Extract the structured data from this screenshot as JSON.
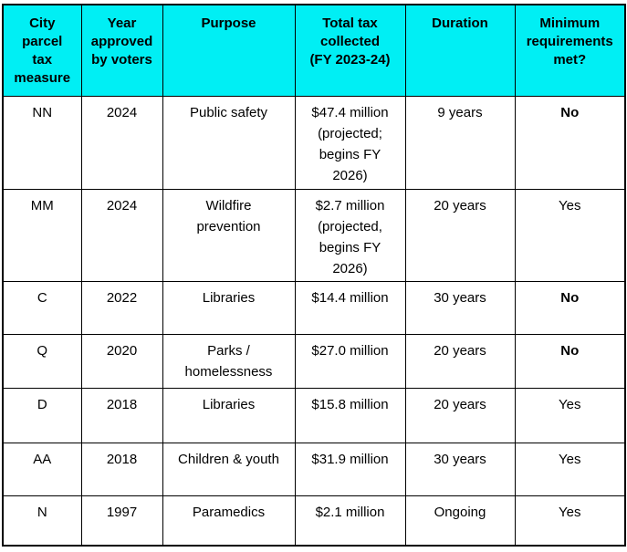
{
  "styles": {
    "header_bg": "#00EFF4",
    "border_color": "#000000",
    "text_color": "#000000"
  },
  "chart_data": {
    "type": "table",
    "title": "",
    "columns": [
      "City parcel tax measure",
      "Year approved by voters",
      "Purpose",
      "Total tax collected (FY 2023-24)",
      "Duration",
      "Minimum requirements met?"
    ],
    "rows": [
      [
        "NN",
        "2024",
        "Public safety",
        "$47.4 million (projected; begins FY 2026)",
        "9 years",
        "No"
      ],
      [
        "MM",
        "2024",
        "Wildfire prevention",
        "$2.7 million (projected, begins FY 2026)",
        "20 years",
        "Yes"
      ],
      [
        "C",
        "2022",
        "Libraries",
        "$14.4 million",
        "30 years",
        "No"
      ],
      [
        "Q",
        "2020",
        "Parks / homelessness",
        "$27.0 million",
        "20 years",
        "No"
      ],
      [
        "D",
        "2018",
        "Libraries",
        "$15.8 million",
        "20 years",
        "Yes"
      ],
      [
        "AA",
        "2018",
        "Children & youth",
        "$31.9 million",
        "30 years",
        "Yes"
      ],
      [
        "N",
        "1997",
        "Paramedics",
        "$2.1 million",
        "Ongoing",
        "Yes"
      ]
    ]
  },
  "display": {
    "header": [
      "City\nparcel\ntax\nmeasure",
      "Year\napproved\nby voters",
      "Purpose",
      "Total tax\ncollected\n(FY 2023-24)",
      "Duration",
      "Minimum\nrequirements\nmet?"
    ],
    "rows": [
      {
        "measure": "NN",
        "year": "2024",
        "purpose": "Public safety",
        "tax": "$47.4 million\n(projected;\nbegins FY\n2026)",
        "duration": "9 years",
        "met": "No",
        "met_bold": true
      },
      {
        "measure": "MM",
        "year": "2024",
        "purpose": "Wildfire\nprevention",
        "tax": "$2.7 million\n(projected,\nbegins FY\n2026)",
        "duration": "20 years",
        "met": "Yes",
        "met_bold": false
      },
      {
        "measure": "C",
        "year": "2022",
        "purpose": "Libraries",
        "tax": "$14.4 million",
        "duration": "30 years",
        "met": "No",
        "met_bold": true
      },
      {
        "measure": "Q",
        "year": "2020",
        "purpose": "Parks /\nhomelessness",
        "tax": "$27.0 million",
        "duration": "20 years",
        "met": "No",
        "met_bold": true
      },
      {
        "measure": "D",
        "year": "2018",
        "purpose": "Libraries",
        "tax": "$15.8 million",
        "duration": "20 years",
        "met": "Yes",
        "met_bold": false
      },
      {
        "measure": "AA",
        "year": "2018",
        "purpose": "Children & youth",
        "tax": "$31.9 million",
        "duration": "30 years",
        "met": "Yes",
        "met_bold": false
      },
      {
        "measure": "N",
        "year": "1997",
        "purpose": "Paramedics",
        "tax": "$2.1 million",
        "duration": "Ongoing",
        "met": "Yes",
        "met_bold": false
      }
    ]
  }
}
